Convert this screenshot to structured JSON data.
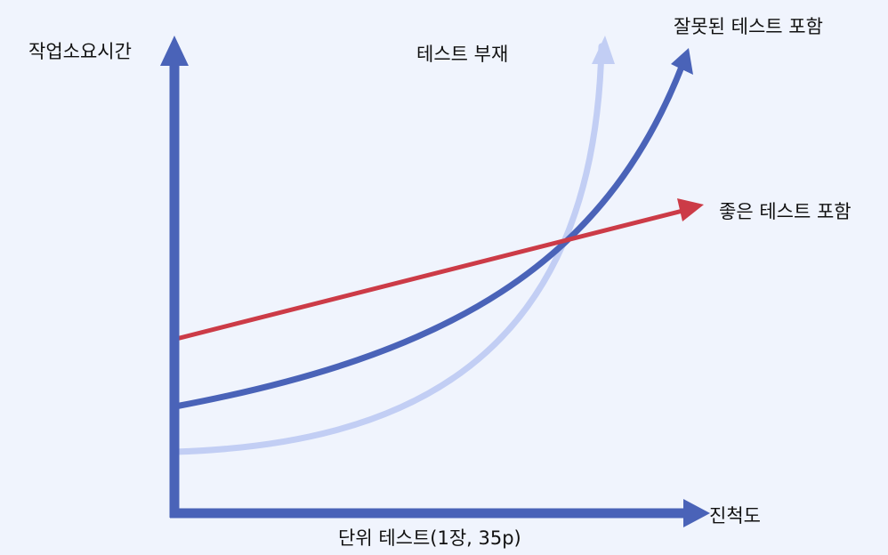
{
  "labels": {
    "y_axis": "작업소요시간",
    "x_axis": "진척도",
    "caption": "단위 테스트(1장, 35p)",
    "no_test": "테스트 부재",
    "bad_test": "잘못된 테스트 포함",
    "good_test": "좋은 테스트 포함"
  },
  "colors": {
    "axis": "#4a63b8",
    "bad_test": "#4a63b8",
    "no_test": "#c2cef4",
    "good_test": "#cc3b47",
    "background": "#f0f4fd"
  }
}
